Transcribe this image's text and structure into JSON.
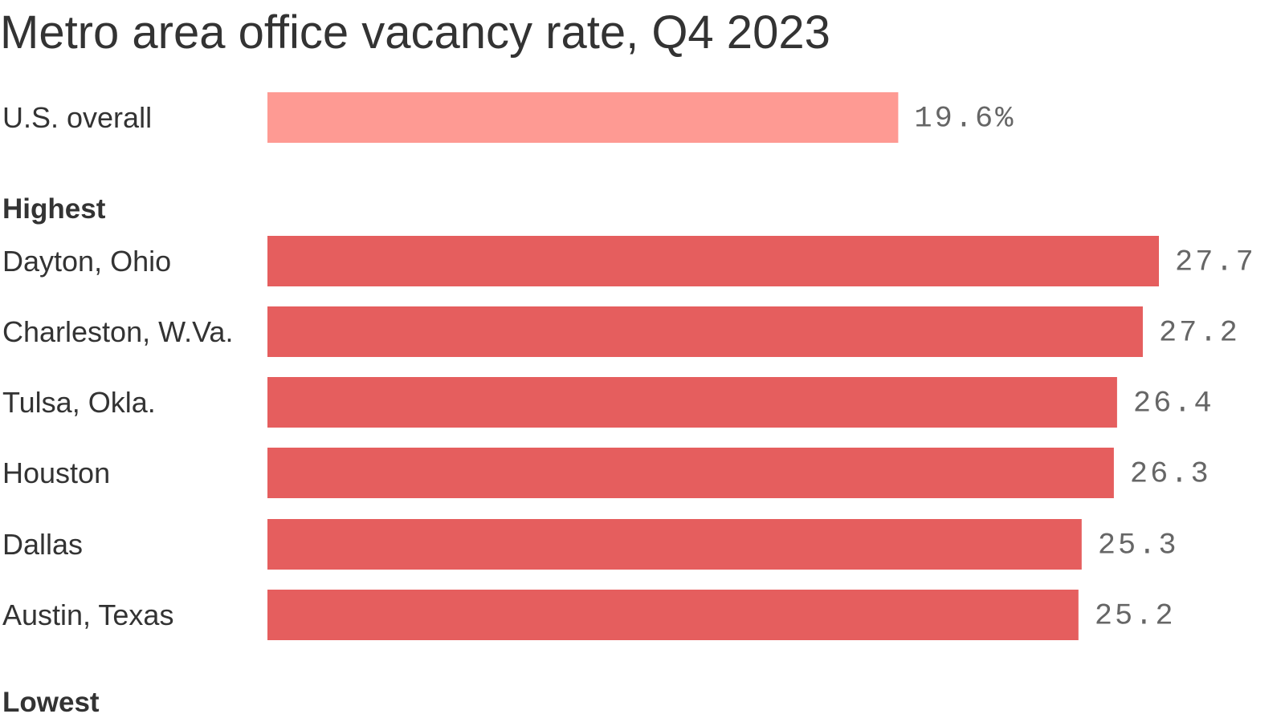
{
  "chart_data": {
    "type": "bar",
    "orientation": "horizontal",
    "title": "Metro area office vacancy rate, Q4 2023",
    "xlabel": "",
    "ylabel": "",
    "xlim": [
      0,
      27.7
    ],
    "grid": false,
    "legend": "none",
    "unit": "%",
    "groups": [
      {
        "label": "",
        "bars": [
          {
            "category": "U.S. overall",
            "value": 19.6,
            "label": "19.6%",
            "color": "#fe9a93"
          }
        ]
      },
      {
        "label": "Highest",
        "bars": [
          {
            "category": "Dayton, Ohio",
            "value": 27.7,
            "label": "27.7",
            "color": "#e55e5e"
          },
          {
            "category": "Charleston, W.Va.",
            "value": 27.2,
            "label": "27.2",
            "color": "#e55e5e"
          },
          {
            "category": "Tulsa, Okla.",
            "value": 26.4,
            "label": "26.4",
            "color": "#e55e5e"
          },
          {
            "category": "Houston",
            "value": 26.3,
            "label": "26.3",
            "color": "#e55e5e"
          },
          {
            "category": "Dallas",
            "value": 25.3,
            "label": "25.3",
            "color": "#e55e5e"
          },
          {
            "category": "Austin, Texas",
            "value": 25.2,
            "label": "25.2",
            "color": "#e55e5e"
          }
        ]
      },
      {
        "label": "Lowest",
        "bars": []
      }
    ]
  }
}
